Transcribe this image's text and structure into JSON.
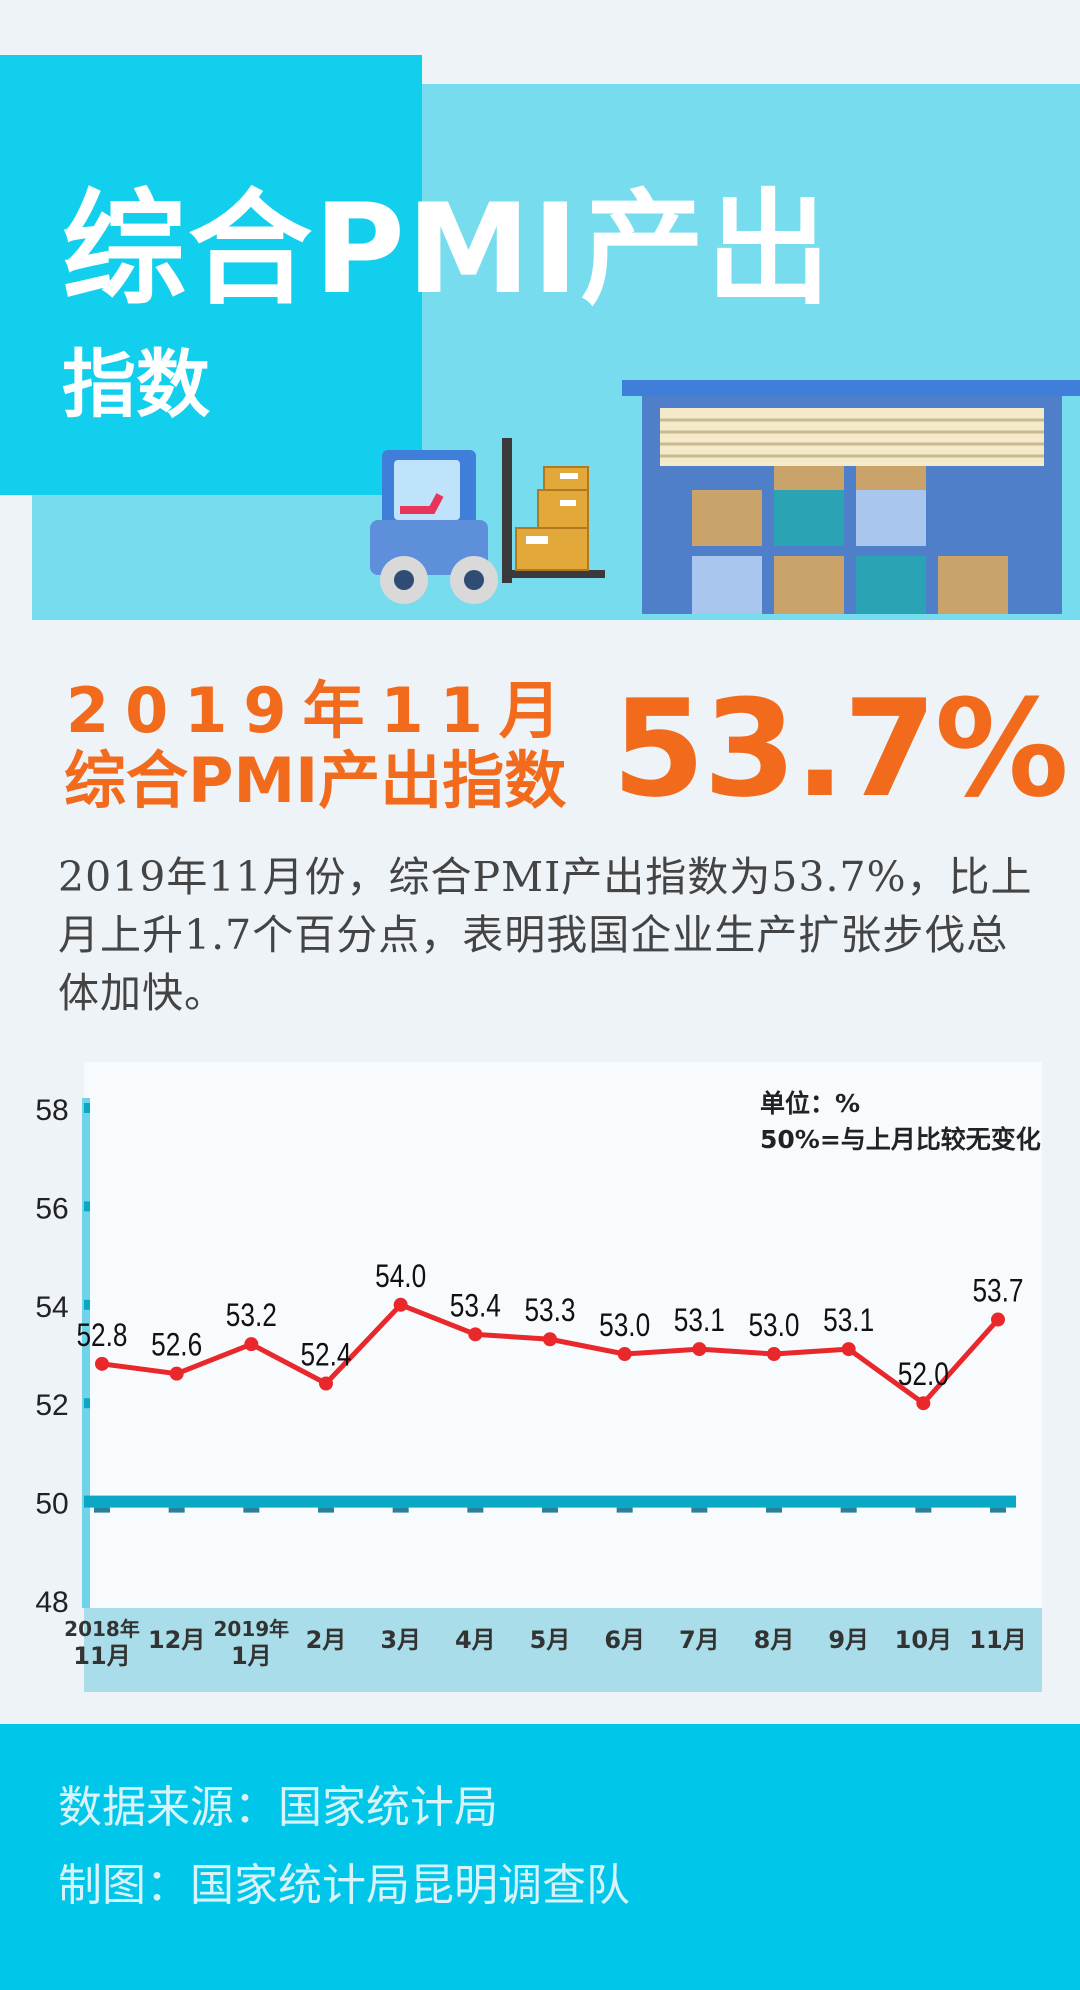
{
  "header": {
    "title": "综合PMI产出",
    "subtitle": "指数"
  },
  "headline": {
    "date": "2019年11月",
    "label": "综合PMI产出指数",
    "value": "53.7%"
  },
  "description": "2019年11月份，综合PMI产出指数为53.7%，比上月上升1.7个百分点，表明我国企业生产扩张步伐总体加快。",
  "chart_data": {
    "type": "line",
    "note_unit": "单位：%",
    "note_reference": "50%=与上月比较无变化",
    "categories": [
      [
        "2018年",
        "11月"
      ],
      [
        "12月"
      ],
      [
        "2019年",
        "1月"
      ],
      [
        "2月"
      ],
      [
        "3月"
      ],
      [
        "4月"
      ],
      [
        "5月"
      ],
      [
        "6月"
      ],
      [
        "7月"
      ],
      [
        "8月"
      ],
      [
        "9月"
      ],
      [
        "10月"
      ],
      [
        "11月"
      ]
    ],
    "series": [
      {
        "values": [
          52.8,
          52.6,
          53.2,
          52.4,
          54.0,
          53.4,
          53.3,
          53.0,
          53.1,
          53.0,
          53.1,
          52.0,
          53.7
        ],
        "labels": [
          "52.8",
          "52.6",
          "53.2",
          "52.4",
          "54.0",
          "53.4",
          "53.3",
          "53.0",
          "53.1",
          "53.0",
          "53.1",
          "52.0",
          "53.7"
        ],
        "color": "#e8282a"
      }
    ],
    "reference_line": 50,
    "reference_color": "#0aa8c4",
    "ylim": [
      48,
      58
    ],
    "yticks": [
      48,
      50,
      52,
      54,
      56,
      58
    ],
    "grid": false
  },
  "footer": {
    "source": "数据来源：国家统计局",
    "producer": "制图：国家统计局昆明调查队"
  },
  "colors": {
    "accent": "#f26a1b",
    "banner_dark": "#12cfee",
    "banner_light": "#78dcef",
    "footer": "#00c6ea",
    "line": "#e8282a"
  }
}
